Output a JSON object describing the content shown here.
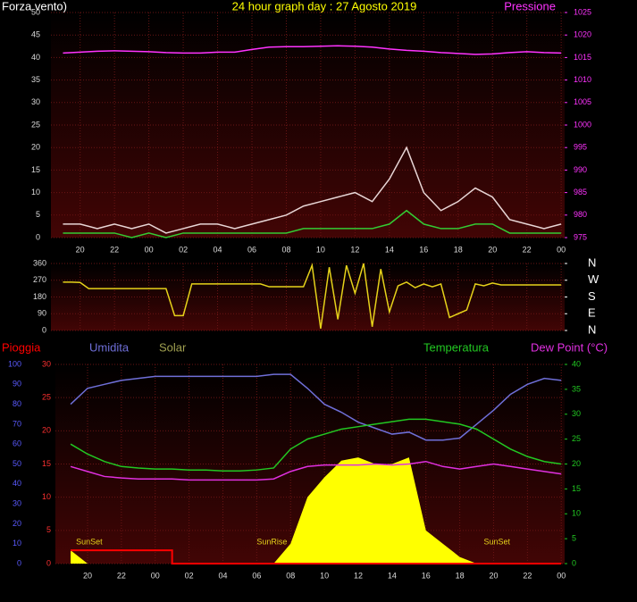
{
  "chart_data": [
    {
      "type": "line",
      "title": "24 hour graph day : 27 Agosto 2019",
      "x": [
        19,
        20,
        21,
        22,
        23,
        24,
        25,
        26,
        27,
        28,
        29,
        30,
        31,
        32,
        33,
        34,
        35,
        36,
        37,
        38,
        39,
        40,
        41,
        42,
        43,
        44,
        45,
        46,
        47,
        48
      ],
      "xlim": [
        18.3,
        48.2
      ],
      "xticks": [
        {
          "value": 20,
          "label": "20"
        },
        {
          "value": 22,
          "label": "22"
        },
        {
          "value": 24,
          "label": "00"
        },
        {
          "value": 26,
          "label": "02"
        },
        {
          "value": 28,
          "label": "04"
        },
        {
          "value": 30,
          "label": "06"
        },
        {
          "value": 32,
          "label": "08"
        },
        {
          "value": 34,
          "label": "10"
        },
        {
          "value": 36,
          "label": "12"
        },
        {
          "value": 38,
          "label": "14"
        },
        {
          "value": 40,
          "label": "16"
        },
        {
          "value": 42,
          "label": "18"
        },
        {
          "value": 44,
          "label": "20"
        },
        {
          "value": 46,
          "label": "22"
        },
        {
          "value": 48,
          "label": "00"
        }
      ],
      "ylim": [
        0,
        50
      ],
      "yticks": [
        0,
        5,
        10,
        15,
        20,
        25,
        30,
        35,
        40,
        45,
        50
      ],
      "y2lim": [
        975,
        1025
      ],
      "y2ticks": [
        975,
        980,
        985,
        990,
        995,
        1000,
        1005,
        1010,
        1015,
        1020,
        1025
      ],
      "grid": true,
      "series": [
        {
          "name": "Forza vento)",
          "color": "#e8d6d6",
          "values": [
            3,
            3,
            2,
            3,
            2,
            3,
            1,
            2,
            3,
            3,
            2,
            3,
            4,
            5,
            7,
            8,
            9,
            10,
            8,
            13,
            20,
            10,
            6,
            8,
            11,
            9,
            4,
            3,
            2,
            3
          ]
        },
        {
          "color": "#33cc33",
          "values": [
            1,
            1,
            1,
            1,
            0,
            1,
            0,
            1,
            1,
            1,
            1,
            1,
            1,
            1,
            2,
            2,
            2,
            2,
            2,
            3,
            6,
            3,
            2,
            2,
            3,
            3,
            1,
            1,
            1,
            1
          ]
        },
        {
          "name": "Pressione",
          "color": "#ff33ff",
          "axis": "y2",
          "values": [
            1016,
            1016.2,
            1016.4,
            1016.5,
            1016.4,
            1016.3,
            1016.1,
            1016,
            1016,
            1016.2,
            1016.2,
            1016.8,
            1017.3,
            1017.4,
            1017.4,
            1017.5,
            1017.6,
            1017.5,
            1017.3,
            1016.9,
            1016.6,
            1016.4,
            1016.1,
            1015.9,
            1015.7,
            1015.8,
            1016.1,
            1016.3,
            1016.1,
            1016
          ]
        }
      ]
    },
    {
      "type": "line",
      "x": [
        19,
        19.5,
        20,
        20.5,
        21,
        21.5,
        22,
        22.5,
        23,
        23.5,
        24,
        24.5,
        25,
        25.5,
        26,
        26.5,
        27,
        27.5,
        28,
        28.5,
        29,
        29.5,
        30,
        30.5,
        31,
        31.5,
        32,
        32.5,
        33,
        33.5,
        34,
        34.5,
        35,
        35.5,
        36,
        36.5,
        37,
        37.5,
        38,
        38.5,
        39,
        39.5,
        40,
        40.5,
        41,
        41.5,
        42,
        42.5,
        43,
        43.5,
        44,
        44.5,
        45,
        45.5,
        46,
        46.5,
        47,
        47.5,
        48
      ],
      "xlim": [
        18.3,
        48.2
      ],
      "ylim": [
        0,
        360
      ],
      "yticks": [
        0,
        90,
        180,
        270,
        360
      ],
      "y2lim": [
        0,
        360
      ],
      "y2ticks": [
        {
          "value": 360,
          "label": "N"
        },
        {
          "value": 270,
          "label": "W"
        },
        {
          "value": 180,
          "label": "S"
        },
        {
          "value": 90,
          "label": "E"
        },
        {
          "value": 0,
          "label": "N"
        }
      ],
      "grid": true,
      "series": [
        {
          "color": "#e6d21a",
          "values": [
            260,
            260,
            258,
            225,
            225,
            225,
            225,
            225,
            225,
            225,
            225,
            225,
            225,
            80,
            80,
            250,
            250,
            250,
            250,
            250,
            250,
            250,
            250,
            250,
            235,
            235,
            235,
            235,
            235,
            350,
            10,
            340,
            60,
            350,
            200,
            360,
            20,
            330,
            100,
            240,
            260,
            230,
            250,
            235,
            250,
            70,
            90,
            110,
            250,
            240,
            255,
            245,
            245,
            245,
            245,
            245,
            245,
            245,
            245
          ]
        }
      ]
    },
    {
      "type": "line",
      "x": [
        19,
        20,
        21,
        22,
        23,
        24,
        25,
        26,
        27,
        28,
        29,
        30,
        31,
        32,
        33,
        34,
        35,
        36,
        37,
        38,
        39,
        40,
        41,
        42,
        43,
        44,
        45,
        46,
        47,
        48
      ],
      "xlim": [
        18.1,
        48.2
      ],
      "xticks": [
        {
          "value": 20,
          "label": "20"
        },
        {
          "value": 22,
          "label": "22"
        },
        {
          "value": 24,
          "label": "00"
        },
        {
          "value": 26,
          "label": "02"
        },
        {
          "value": 28,
          "label": "04"
        },
        {
          "value": 30,
          "label": "06"
        },
        {
          "value": 32,
          "label": "08"
        },
        {
          "value": 34,
          "label": "10"
        },
        {
          "value": 36,
          "label": "12"
        },
        {
          "value": 38,
          "label": "14"
        },
        {
          "value": 40,
          "label": "16"
        },
        {
          "value": 42,
          "label": "18"
        },
        {
          "value": 44,
          "label": "20"
        },
        {
          "value": 46,
          "label": "22"
        },
        {
          "value": 48,
          "label": "00"
        }
      ],
      "ylim": [
        0,
        30
      ],
      "yticks": [
        0,
        5,
        10,
        15,
        20,
        25,
        30
      ],
      "y2lim": [
        0,
        40
      ],
      "y2ticks": [
        0,
        5,
        10,
        15,
        20,
        25,
        30,
        35,
        40
      ],
      "y3lim": [
        0,
        100
      ],
      "y3ticks": [
        0,
        10,
        20,
        30,
        40,
        50,
        60,
        70,
        80,
        90,
        100
      ],
      "grid": true,
      "series": [
        {
          "name": "Pioggia",
          "color": "#ff0000",
          "step": true,
          "values": [
            2,
            2,
            2,
            2,
            2,
            2,
            0,
            0,
            0,
            0,
            0,
            0,
            0,
            0,
            0,
            0,
            0,
            0,
            0,
            0,
            0,
            0,
            0,
            0,
            0,
            0,
            0,
            0,
            0,
            0
          ]
        },
        {
          "name": "Umidita",
          "color": "#6f6fd8",
          "axis": "y3",
          "values": [
            80,
            88,
            90,
            92,
            93,
            94,
            94,
            94,
            94,
            94,
            94,
            94,
            95,
            95,
            88,
            80,
            76,
            71,
            68,
            65,
            66,
            62,
            62,
            63,
            70,
            77,
            85,
            90,
            93,
            92
          ]
        },
        {
          "name": "Solar",
          "color": "#ffff00",
          "label_color": "#a0a050",
          "area": true,
          "values": [
            2,
            0,
            0,
            0,
            0,
            0,
            0,
            0,
            0,
            0,
            0,
            0,
            0,
            3,
            10,
            13,
            15.5,
            16,
            15,
            15,
            16,
            5,
            3,
            1,
            0,
            0,
            0,
            0,
            0,
            0
          ]
        },
        {
          "name": "Temperatura",
          "color": "#22c822",
          "axis": "y2",
          "values": [
            24,
            22,
            20.5,
            19.5,
            19.2,
            19,
            19,
            18.8,
            18.8,
            18.6,
            18.6,
            18.8,
            19.2,
            23,
            25,
            26,
            27,
            27.5,
            28,
            28.5,
            29,
            29,
            28.5,
            28,
            27,
            25,
            23,
            21.5,
            20.5,
            20
          ]
        },
        {
          "name": "Dew Point (°C)",
          "color": "#e030e0",
          "axis": "y2",
          "values": [
            19.5,
            18.5,
            17.5,
            17.2,
            17,
            17,
            17,
            16.8,
            16.8,
            16.8,
            16.8,
            16.8,
            17,
            18.5,
            19.5,
            19.8,
            19.8,
            19.8,
            20,
            19.8,
            20,
            20.5,
            19.5,
            19,
            19.5,
            20,
            19.5,
            19,
            18.5,
            18
          ]
        }
      ],
      "annotations": [
        {
          "text": "SunSet",
          "x": 20.1
        },
        {
          "text": "SunRise",
          "x": 30.9
        },
        {
          "text": "SunSet",
          "x": 44.2
        }
      ]
    }
  ]
}
